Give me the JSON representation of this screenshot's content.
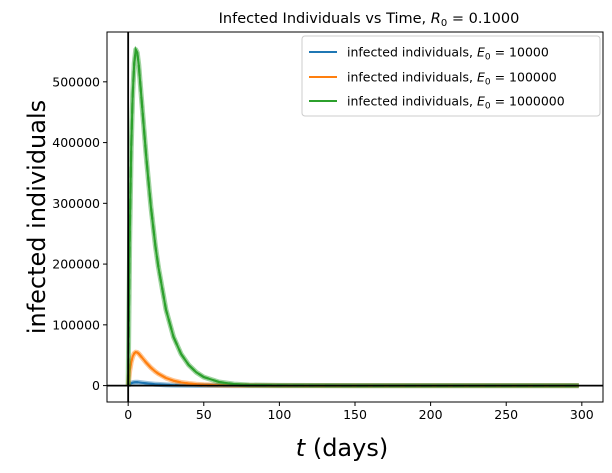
{
  "chart_data": {
    "type": "line",
    "title": {
      "prefix": "Infected Individuals vs Time, ",
      "r_base": "R",
      "r_sub": "0",
      "suffix": " = 0.1000"
    },
    "xlabel": {
      "var": "t",
      "rest": " (days)"
    },
    "ylabel": "infected individuals",
    "xlim": [
      -14,
      314
    ],
    "ylim": [
      -27000,
      582000
    ],
    "xticks": [
      0,
      50,
      100,
      150,
      200,
      250,
      300
    ],
    "yticks": [
      0,
      100000,
      200000,
      300000,
      400000,
      500000
    ],
    "grid": false,
    "legend_position": "top-right",
    "reference_lines": {
      "x": 0,
      "y": 0
    },
    "series": [
      {
        "legend_prefix": "infected individuals, ",
        "legend_base": "E",
        "legend_sub": "0",
        "legend_value": " = 10000",
        "color": "#1f77b4",
        "x": [
          0,
          1,
          2,
          3,
          4,
          5,
          6,
          7,
          8,
          10,
          12,
          15,
          18,
          20,
          25,
          30,
          35,
          40,
          45,
          50,
          60,
          70,
          80,
          100,
          150,
          200,
          250,
          298
        ],
        "y": [
          0,
          2400,
          3900,
          4800,
          5300,
          5500,
          5450,
          5250,
          4950,
          4350,
          3750,
          2950,
          2300,
          1950,
          1250,
          800,
          520,
          340,
          220,
          140,
          60,
          25,
          10,
          3,
          0,
          0,
          0,
          0
        ]
      },
      {
        "legend_prefix": "infected individuals, ",
        "legend_base": "E",
        "legend_sub": "0",
        "legend_value": " = 100000",
        "color": "#ff7f0e",
        "x": [
          0,
          1,
          2,
          3,
          4,
          5,
          6,
          7,
          8,
          10,
          12,
          15,
          18,
          20,
          25,
          30,
          35,
          40,
          45,
          50,
          60,
          70,
          80,
          100,
          150,
          200,
          250,
          298
        ],
        "y": [
          0,
          24000,
          39000,
          48000,
          53000,
          55000,
          54500,
          52500,
          49500,
          43500,
          37500,
          29500,
          23000,
          19500,
          12500,
          8000,
          5200,
          3400,
          2200,
          1400,
          600,
          250,
          100,
          30,
          0,
          0,
          0,
          0
        ]
      },
      {
        "legend_prefix": "infected individuals, ",
        "legend_base": "E",
        "legend_sub": "0",
        "legend_value": " = 1000000",
        "color": "#2ca02c",
        "x": [
          0,
          1,
          2,
          3,
          4,
          5,
          6,
          7,
          8,
          10,
          12,
          15,
          18,
          20,
          25,
          30,
          35,
          40,
          45,
          50,
          60,
          70,
          80,
          100,
          150,
          200,
          250,
          298
        ],
        "y": [
          0,
          240000,
          390000,
          480000,
          530000,
          553000,
          548000,
          528000,
          497000,
          436000,
          375000,
          295000,
          230000,
          195000,
          125000,
          80000,
          52000,
          34000,
          22000,
          14000,
          6000,
          2500,
          1000,
          300,
          0,
          0,
          0,
          0
        ]
      }
    ]
  }
}
